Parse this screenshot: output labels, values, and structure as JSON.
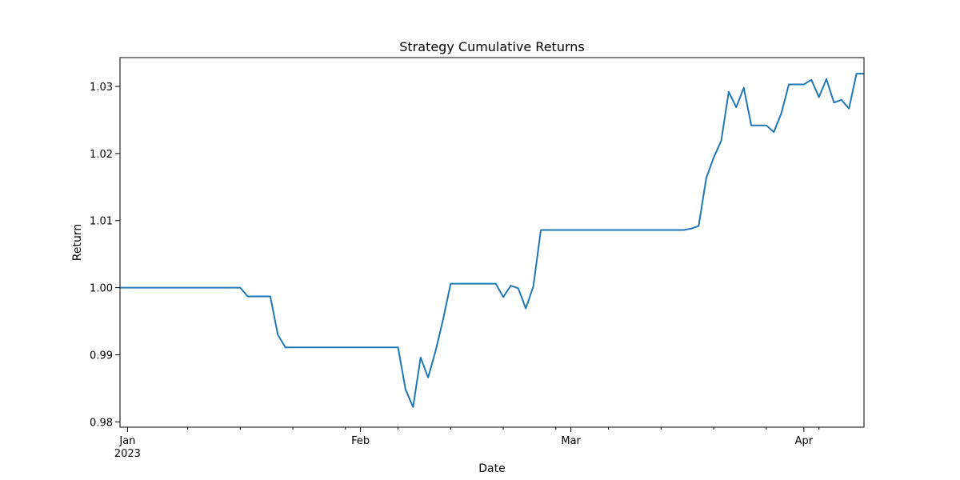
{
  "chart_data": {
    "type": "line",
    "title": "Strategy Cumulative Returns",
    "xlabel": "Date",
    "ylabel": "Return",
    "xlim": [
      "2022-12-31",
      "2023-04-09"
    ],
    "ylim": [
      0.9792,
      1.0343
    ],
    "grid": false,
    "colors": {
      "line": "#1f77b4",
      "axes": "#000000",
      "background": "#ffffff"
    },
    "x_ticks": [
      {
        "date": "2023-01-01",
        "label": "Jan",
        "sublabel": "2023"
      },
      {
        "date": "2023-02-01",
        "label": "Feb"
      },
      {
        "date": "2023-03-01",
        "label": "Mar"
      },
      {
        "date": "2023-04-01",
        "label": "Apr"
      }
    ],
    "x_minor_ticks": [
      "2023-01-09",
      "2023-01-16",
      "2023-01-23",
      "2023-01-30",
      "2023-02-06",
      "2023-02-13",
      "2023-02-20",
      "2023-02-27",
      "2023-03-06",
      "2023-03-13",
      "2023-03-20",
      "2023-03-27",
      "2023-04-03"
    ],
    "y_ticks": [
      {
        "value": 0.98,
        "label": "0.98"
      },
      {
        "value": 0.99,
        "label": "0.99"
      },
      {
        "value": 1.0,
        "label": "1.00"
      },
      {
        "value": 1.01,
        "label": "1.01"
      },
      {
        "value": 1.02,
        "label": "1.02"
      },
      {
        "value": 1.03,
        "label": "1.03"
      }
    ],
    "series": [
      {
        "x": [
          "2022-12-31",
          "2023-01-16",
          "2023-01-17",
          "2023-01-20",
          "2023-01-21",
          "2023-01-22",
          "2023-02-06",
          "2023-02-07",
          "2023-02-08",
          "2023-02-09",
          "2023-02-10",
          "2023-02-11",
          "2023-02-12",
          "2023-02-13",
          "2023-02-14",
          "2023-02-19",
          "2023-02-20",
          "2023-02-21",
          "2023-02-22",
          "2023-02-23",
          "2023-02-24",
          "2023-02-25",
          "2023-03-16",
          "2023-03-17",
          "2023-03-18",
          "2023-03-19",
          "2023-03-20",
          "2023-03-21",
          "2023-03-22",
          "2023-03-23",
          "2023-03-24",
          "2023-03-25",
          "2023-03-27",
          "2023-03-28",
          "2023-03-29",
          "2023-03-30",
          "2023-03-31",
          "2023-04-01",
          "2023-04-02",
          "2023-04-03",
          "2023-04-04",
          "2023-04-05",
          "2023-04-06",
          "2023-04-07",
          "2023-04-08",
          "2023-04-09"
        ],
        "y": [
          1.0,
          1.0,
          0.9987,
          0.9987,
          0.993,
          0.9911,
          0.9911,
          0.9848,
          0.9822,
          0.9896,
          0.9866,
          0.9906,
          0.9953,
          1.0006,
          1.0006,
          1.0006,
          0.9986,
          1.0003,
          0.9999,
          0.9969,
          1.0002,
          1.0086,
          1.0086,
          1.0088,
          1.0092,
          1.0163,
          1.0194,
          1.0219,
          1.0292,
          1.0269,
          1.0298,
          1.0242,
          1.0242,
          1.0232,
          1.026,
          1.0303,
          1.0303,
          1.0303,
          1.031,
          1.0284,
          1.0311,
          1.0276,
          1.028,
          1.0267,
          1.0319,
          1.0319
        ]
      }
    ]
  }
}
